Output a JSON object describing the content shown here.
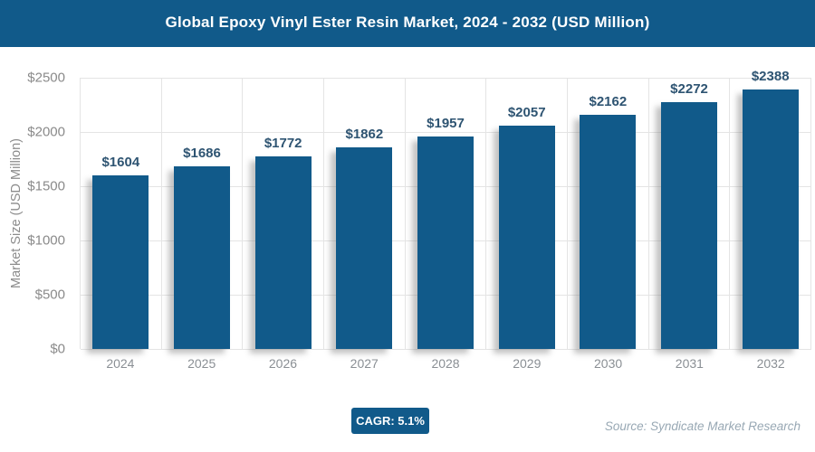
{
  "header": {
    "title": "Global Epoxy Vinyl Ester Resin Market, 2024 - 2032 (USD Million)"
  },
  "chart_data": {
    "type": "bar",
    "title": "Global Epoxy Vinyl Ester Resin Market, 2024 - 2032 (USD Million)",
    "categories": [
      "2024",
      "2025",
      "2026",
      "2027",
      "2028",
      "2029",
      "2030",
      "2031",
      "2032"
    ],
    "values": [
      1604,
      1686,
      1772,
      1862,
      1957,
      2057,
      2162,
      2272,
      2388
    ],
    "value_labels": [
      "$1604",
      "$1686",
      "$1772",
      "$1862",
      "$1957",
      "$2057",
      "$2162",
      "$2272",
      "$2388"
    ],
    "xlabel": "",
    "ylabel": "Market Size (USD Million)",
    "ylim": [
      0,
      2500
    ],
    "y_ticks": [
      {
        "value": 0,
        "label": "$0"
      },
      {
        "value": 500,
        "label": "$500"
      },
      {
        "value": 1000,
        "label": "$1000"
      },
      {
        "value": 1500,
        "label": "$1500"
      },
      {
        "value": 2000,
        "label": "$2000"
      },
      {
        "value": 2500,
        "label": "$2500"
      }
    ],
    "grid": true,
    "legend": "none"
  },
  "footer": {
    "cagr_label": "CAGR: 5.1%",
    "source": "Source: Syndicate Market Research"
  },
  "colors": {
    "brand_blue": "#115a8a",
    "bar": "#115a8a",
    "value_label": "#2e5472",
    "axis_text": "#8a8a8a",
    "gridline": "#e4e4e4",
    "source_text": "#98a8b4"
  }
}
